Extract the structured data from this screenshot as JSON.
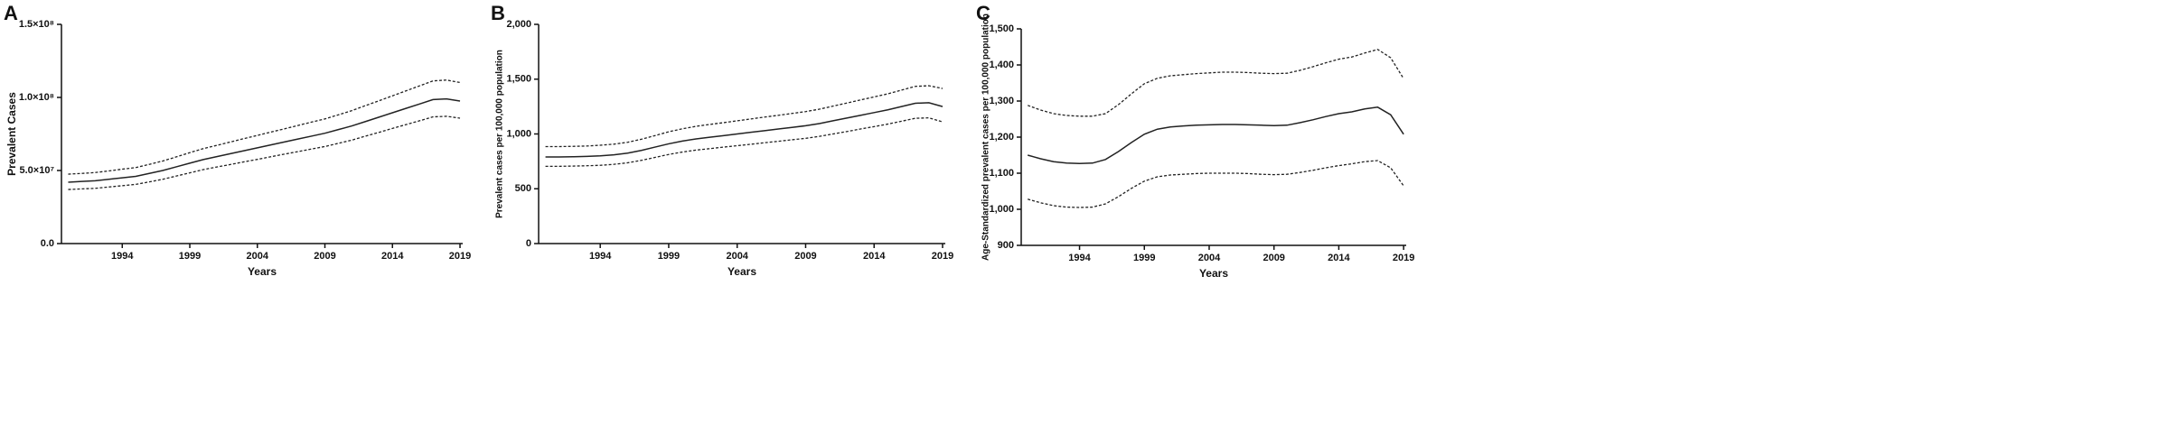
{
  "chart_data": [
    {
      "type": "line",
      "label": "A",
      "ylabel": "Prevalent Cases",
      "xlabel": "Years",
      "x": [
        1990,
        1991,
        1992,
        1993,
        1994,
        1995,
        1996,
        1997,
        1998,
        1999,
        2000,
        2001,
        2002,
        2003,
        2004,
        2005,
        2006,
        2007,
        2008,
        2009,
        2010,
        2011,
        2012,
        2013,
        2014,
        2015,
        2016,
        2017,
        2018,
        2019
      ],
      "xlim": [
        1989.5,
        2019.2
      ],
      "xticks": [
        1994,
        1999,
        2004,
        2009,
        2014,
        2019
      ],
      "ylim": [
        0,
        150000000.0
      ],
      "yticks": [
        {
          "value": 0,
          "label": "0.0"
        },
        {
          "value": 50000000.0,
          "label": "5.0×10⁷"
        },
        {
          "value": 100000000.0,
          "label": "1.0×10⁸"
        },
        {
          "value": 150000000.0,
          "label": "1.5×10⁸"
        }
      ],
      "series": [
        {
          "color": "#222222",
          "dashed": true,
          "values": [
            47500000.0,
            48000000.0,
            48600000.0,
            49700000.0,
            50900000.0,
            52000000.0,
            54200000.0,
            56500000.0,
            59300000.0,
            62200000.0,
            65000000.0,
            67200000.0,
            69500000.0,
            71800000.0,
            74000000.0,
            76300000.0,
            78500000.0,
            80800000.0,
            83100000.0,
            85300000.0,
            88100000.0,
            91000000.0,
            94400000.0,
            97700000.0,
            101100000.0,
            104500000.0,
            107900000.0,
            111300000.0,
            111900000.0,
            110200000.0
          ]
        },
        {
          "color": "#222222",
          "dashed": false,
          "values": [
            42000000.0,
            42500000.0,
            43000000.0,
            44000000.0,
            45000000.0,
            46000000.0,
            48000000.0,
            50000000.0,
            52500000.0,
            55000000.0,
            57500000.0,
            59500000.0,
            61500000.0,
            63500000.0,
            65500000.0,
            67500000.0,
            69500000.0,
            71500000.0,
            73500000.0,
            75500000.0,
            78000000.0,
            80500000.0,
            83500000.0,
            86500000.0,
            89500000.0,
            92500000.0,
            95500000.0,
            98500000.0,
            99000000.0,
            97500000.0
          ]
        },
        {
          "color": "#222222",
          "dashed": true,
          "values": [
            37000000.0,
            37400000.0,
            37800000.0,
            38700000.0,
            39600000.0,
            40500000.0,
            42200000.0,
            44000000.0,
            46200000.0,
            48400000.0,
            50600000.0,
            52400000.0,
            54100000.0,
            55900000.0,
            57600000.0,
            59400000.0,
            61200000.0,
            62900000.0,
            64700000.0,
            66400000.0,
            68600000.0,
            70800000.0,
            73500000.0,
            76100000.0,
            78800000.0,
            81400000.0,
            84000000.0,
            86700000.0,
            87100000.0,
            85800000.0
          ]
        }
      ]
    },
    {
      "type": "line",
      "label": "B",
      "ylabel": "Prevalent cases per 100,000 population",
      "xlabel": "Years",
      "x": [
        1990,
        1991,
        1992,
        1993,
        1994,
        1995,
        1996,
        1997,
        1998,
        1999,
        2000,
        2001,
        2002,
        2003,
        2004,
        2005,
        2006,
        2007,
        2008,
        2009,
        2010,
        2011,
        2012,
        2013,
        2014,
        2015,
        2016,
        2017,
        2018,
        2019
      ],
      "xlim": [
        1989.5,
        2019.2
      ],
      "xticks": [
        1994,
        1999,
        2004,
        2009,
        2014,
        2019
      ],
      "ylim": [
        0,
        2000
      ],
      "yticks": [
        0,
        500,
        {
          "value": 1000,
          "label": "1,000"
        },
        {
          "value": 1500,
          "label": "1,500"
        },
        {
          "value": 2000,
          "label": "2,000"
        }
      ],
      "series": [
        {
          "color": "#222222",
          "dashed": true,
          "values": [
            885,
            885,
            887,
            890,
            897,
            907,
            924,
            952,
            985,
            1020,
            1047,
            1070,
            1087,
            1103,
            1120,
            1137,
            1154,
            1170,
            1187,
            1204,
            1226,
            1254,
            1282,
            1310,
            1338,
            1366,
            1400,
            1434,
            1440,
            1415
          ]
        },
        {
          "color": "#222222",
          "dashed": false,
          "values": [
            790,
            790,
            792,
            795,
            800,
            810,
            825,
            850,
            880,
            910,
            935,
            955,
            970,
            985,
            1000,
            1015,
            1030,
            1045,
            1060,
            1075,
            1095,
            1120,
            1145,
            1170,
            1195,
            1220,
            1250,
            1280,
            1285,
            1250
          ]
        },
        {
          "color": "#222222",
          "dashed": true,
          "values": [
            705,
            705,
            707,
            710,
            714,
            723,
            737,
            759,
            786,
            813,
            835,
            853,
            866,
            880,
            893,
            906,
            920,
            933,
            947,
            960,
            978,
            1000,
            1022,
            1045,
            1067,
            1090,
            1116,
            1143,
            1147,
            1110
          ]
        }
      ]
    },
    {
      "type": "line",
      "label": "C",
      "ylabel": "Age-Standardized prevalent cases per 100,000 population",
      "xlabel": "Years",
      "x": [
        1990,
        1991,
        1992,
        1993,
        1994,
        1995,
        1996,
        1997,
        1998,
        1999,
        2000,
        2001,
        2002,
        2003,
        2004,
        2005,
        2006,
        2007,
        2008,
        2009,
        2010,
        2011,
        2012,
        2013,
        2014,
        2015,
        2016,
        2017,
        2018,
        2019
      ],
      "xlim": [
        1989.5,
        2019.2
      ],
      "xticks": [
        1994,
        1999,
        2004,
        2009,
        2014,
        2019
      ],
      "ylim": [
        900,
        1500
      ],
      "yticks": [
        900,
        {
          "value": 1000,
          "label": "1,000"
        },
        {
          "value": 1100,
          "label": "1,100"
        },
        {
          "value": 1200,
          "label": "1,200"
        },
        {
          "value": 1300,
          "label": "1,300"
        },
        {
          "value": 1400,
          "label": "1,400"
        },
        {
          "value": 1500,
          "label": "1,500"
        }
      ],
      "series": [
        {
          "color": "#222222",
          "dashed": true,
          "values": [
            1288,
            1275,
            1265,
            1260,
            1258,
            1258,
            1265,
            1290,
            1320,
            1348,
            1363,
            1370,
            1373,
            1376,
            1378,
            1380,
            1380,
            1379,
            1377,
            1376,
            1377,
            1385,
            1395,
            1406,
            1416,
            1422,
            1433,
            1443,
            1420,
            1362
          ]
        },
        {
          "color": "#222222",
          "dashed": false,
          "values": [
            1150,
            1140,
            1132,
            1128,
            1127,
            1128,
            1138,
            1160,
            1185,
            1208,
            1222,
            1228,
            1231,
            1233,
            1234,
            1235,
            1235,
            1234,
            1233,
            1232,
            1233,
            1240,
            1248,
            1257,
            1265,
            1270,
            1278,
            1283,
            1262,
            1208
          ]
        },
        {
          "color": "#222222",
          "dashed": true,
          "values": [
            1028,
            1018,
            1010,
            1006,
            1005,
            1006,
            1015,
            1035,
            1058,
            1078,
            1090,
            1095,
            1097,
            1099,
            1100,
            1100,
            1100,
            1099,
            1097,
            1096,
            1097,
            1102,
            1108,
            1115,
            1121,
            1126,
            1132,
            1135,
            1115,
            1065
          ]
        }
      ]
    }
  ]
}
